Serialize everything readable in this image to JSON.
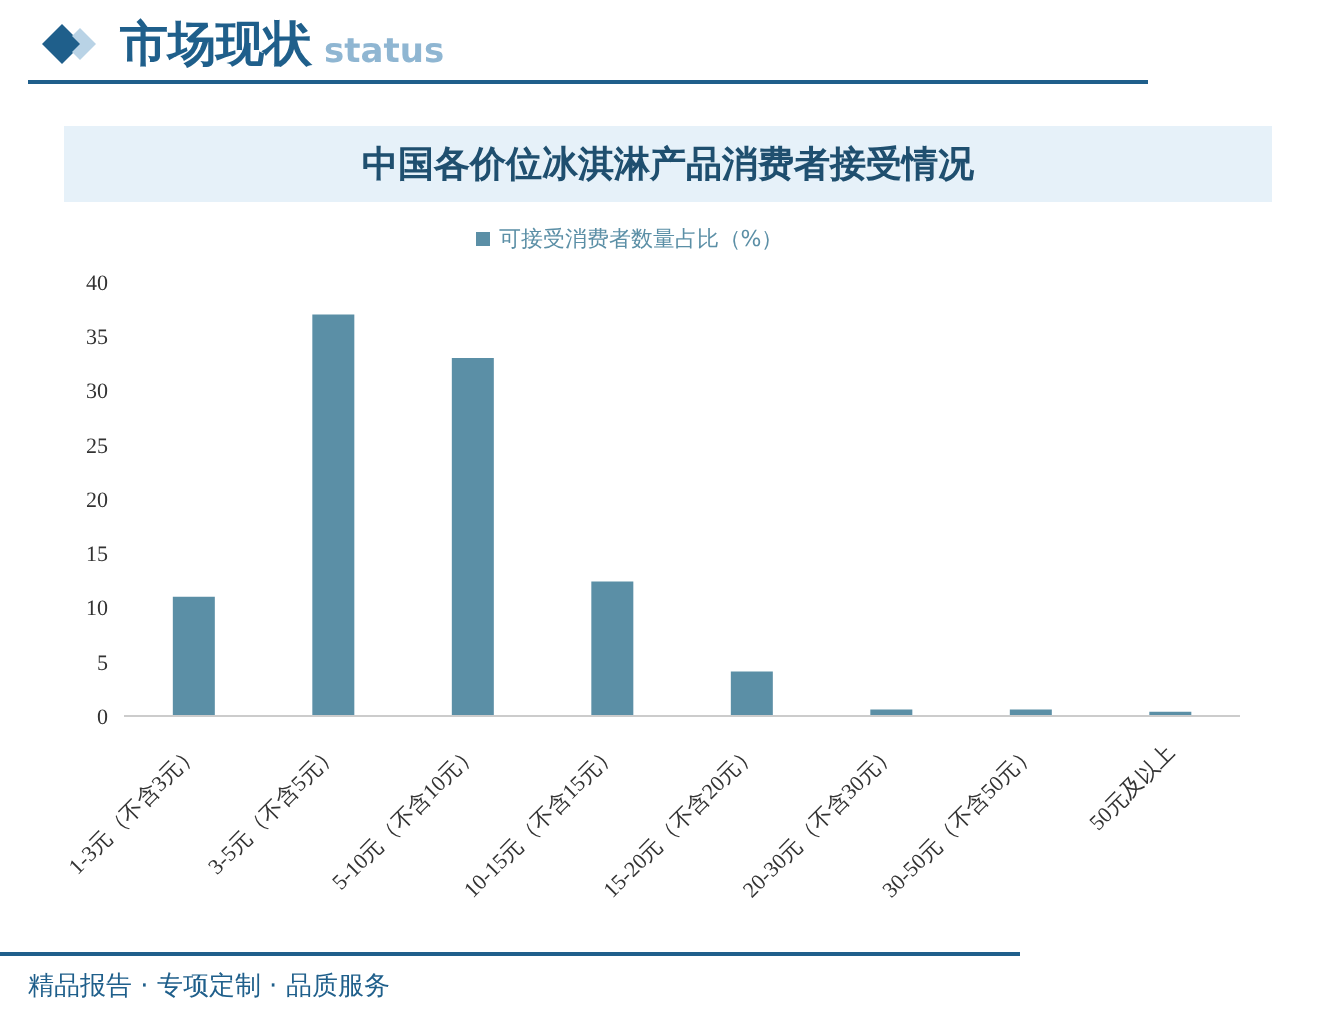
{
  "chart_data": {
    "type": "bar",
    "title": "中国各价位冰淇淋产品消费者接受情况",
    "annotations": [
      "市场现状",
      "status",
      "精品报告 · 专项定制 · 品质服务"
    ],
    "categories": [
      "1-3元（不含3元）",
      "3-5元（不含5元）",
      "5-10元（不含10元）",
      "10-15元（不含15元）",
      "15-20元（不含20元）",
      "20-30元（不含30元）",
      "30-50元（不含50元）",
      "50元及以上"
    ],
    "series": [
      {
        "name": "可接受消费者数量占比（%）",
        "color": "#5b8fa6",
        "values": [
          11.0,
          37.0,
          33.0,
          12.4,
          4.1,
          0.6,
          0.6,
          0.4
        ]
      }
    ],
    "ylim": [
      0,
      40
    ],
    "yticks": [
      0,
      5,
      10,
      15,
      20,
      25,
      30,
      35,
      40
    ],
    "legend": "top",
    "grid": false
  }
}
